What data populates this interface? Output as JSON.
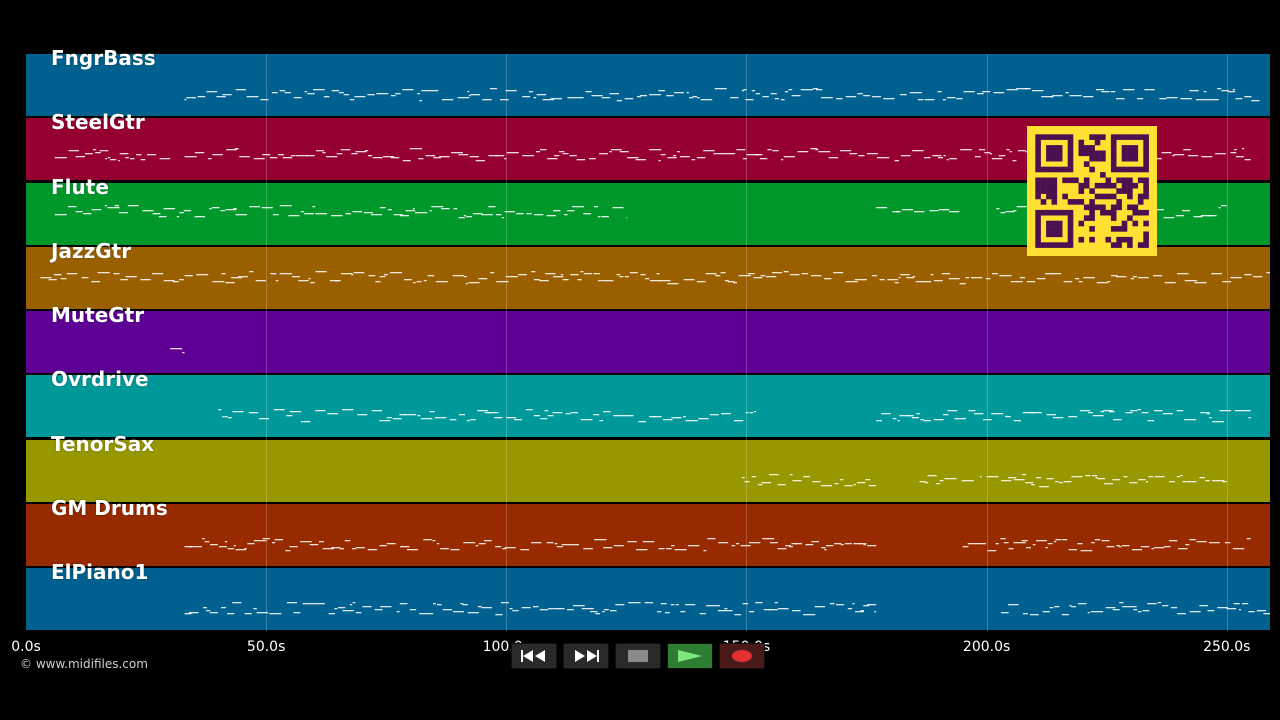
{
  "tracks": [
    {
      "name": "FngrBass",
      "color": "#00608f"
    },
    {
      "name": "SteelGtr",
      "color": "#960030"
    },
    {
      "name": "Flute",
      "color": "#00982b"
    },
    {
      "name": "JazzGtr",
      "color": "#9a6000"
    },
    {
      "name": "MuteGtr",
      "color": "#5e0096"
    },
    {
      "name": "Ovrdrive",
      "color": "#00999a"
    },
    {
      "name": "TenorSax",
      "color": "#979700"
    },
    {
      "name": "GM Drums",
      "color": "#982a00"
    },
    {
      "name": "ElPiano1",
      "color": "#00608f"
    }
  ],
  "timeline": {
    "max_seconds": 259,
    "ticks": [
      {
        "value": 0,
        "label": "0.0s"
      },
      {
        "value": 50,
        "label": "50.0s"
      },
      {
        "value": 100,
        "label": "100.0s"
      },
      {
        "value": 150,
        "label": "150.0s"
      },
      {
        "value": 200,
        "label": "200.0s"
      },
      {
        "value": 250,
        "label": "250.0s"
      }
    ]
  },
  "copyright": "© www.midifiles.com",
  "transport": {
    "buttons": [
      "rewind",
      "fast-forward",
      "stop",
      "play",
      "record"
    ]
  },
  "qr_code": {
    "color": "#ffe033",
    "module_color": "#4a1050"
  }
}
